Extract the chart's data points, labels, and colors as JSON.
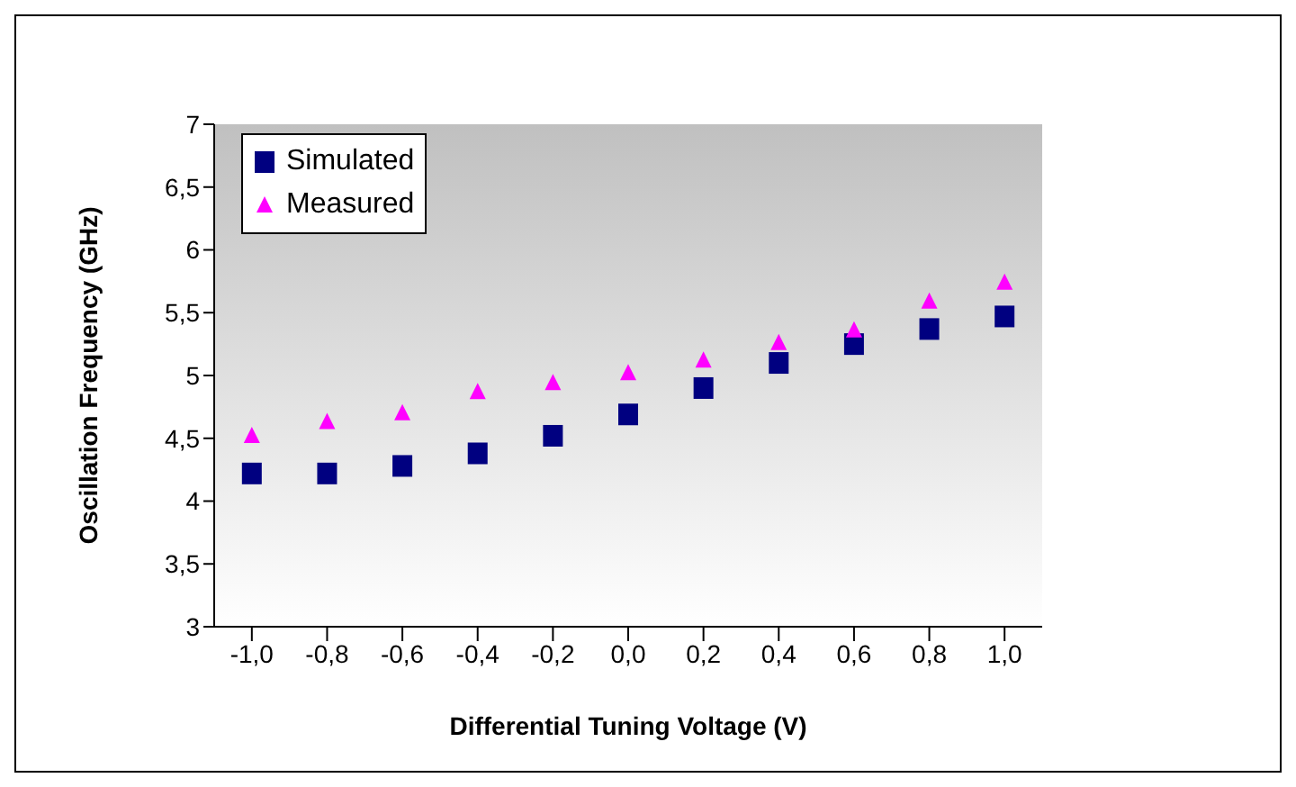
{
  "chart_data": {
    "type": "scatter",
    "xlabel": "Differential Tuning Voltage (V)",
    "ylabel": "Oscillation Frequency (GHz)",
    "categories": [
      "-1,0",
      "-0,8",
      "-0,6",
      "-0,4",
      "-0,2",
      "0,0",
      "0,2",
      "0,4",
      "0,6",
      "0,8",
      "1,0"
    ],
    "series": [
      {
        "name": "Simulated",
        "color": "#000080",
        "marker": "square",
        "values": [
          4.22,
          4.22,
          4.28,
          4.38,
          4.52,
          4.69,
          4.9,
          5.1,
          5.25,
          5.37,
          5.47
        ]
      },
      {
        "name": "Measured",
        "color": "#ff00ff",
        "marker": "triangle",
        "values": [
          4.52,
          4.63,
          4.7,
          4.87,
          4.94,
          5.02,
          5.12,
          5.26,
          5.36,
          5.59,
          5.74
        ]
      }
    ],
    "ylim": [
      3,
      7
    ],
    "yticks": [
      3,
      {
        "value": 3.5,
        "label": "3,5"
      },
      4,
      {
        "value": 4.5,
        "label": "4,5"
      },
      5,
      {
        "value": 5.5,
        "label": "5,5"
      },
      6,
      {
        "value": 6.5,
        "label": "6,5"
      },
      7
    ],
    "grid": false,
    "legend": "top left"
  }
}
